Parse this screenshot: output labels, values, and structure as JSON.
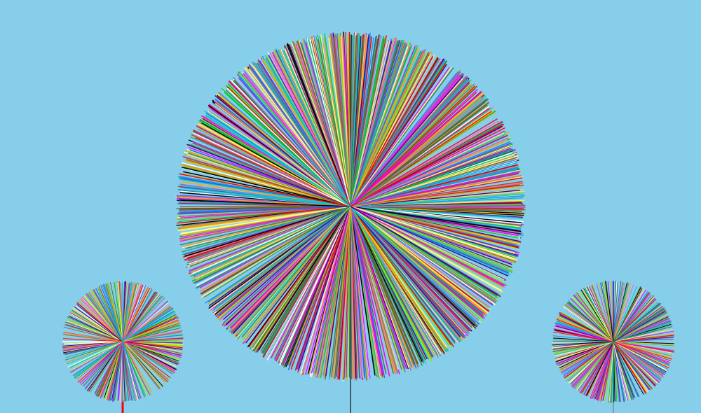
{
  "background_color": "#87ceeb",
  "palette": [
    "#ff0000",
    "#00cc44",
    "#3355ff",
    "#ff00ff",
    "#ffa500",
    "#8a2be2",
    "#00ced1",
    "#ffff66",
    "#000000",
    "#556b2f",
    "#ff69b4",
    "#7fff00",
    "#a0522d",
    "#ffffff",
    "#808080",
    "#ba55d3",
    "#2e8b57",
    "#f0e68c",
    "#1e90ff",
    "#dc143c",
    "#20b2aa",
    "#9acd32",
    "#4b0082",
    "#daa520"
  ],
  "dandelions": [
    {
      "name": "left",
      "stem_color": "#ff0000",
      "ray_count": 420
    },
    {
      "name": "center",
      "stem_color": "#3d5a66",
      "ray_count": 1400
    },
    {
      "name": "right",
      "stem_color": "#808a90",
      "ray_count": 420
    }
  ]
}
